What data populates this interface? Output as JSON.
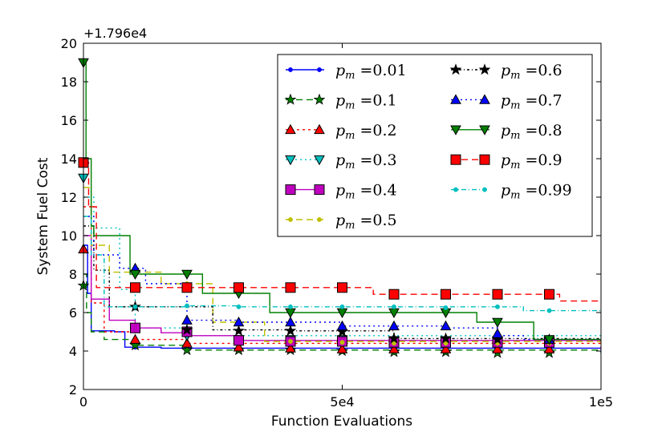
{
  "chart_data": {
    "type": "line",
    "title": "",
    "xlabel": "Function Evaluations",
    "ylabel": "System Fuel Cost",
    "y_offset_label": "+1.796e4",
    "xlim": [
      0,
      100000
    ],
    "ylim": [
      2,
      20
    ],
    "x_ticks": [
      {
        "value": 0,
        "label": "0"
      },
      {
        "value": 50000,
        "label": "5e4"
      },
      {
        "value": 100000,
        "label": "1e5"
      }
    ],
    "y_ticks": [
      {
        "value": 2,
        "label": "2"
      },
      {
        "value": 4,
        "label": "4"
      },
      {
        "value": 6,
        "label": "6"
      },
      {
        "value": 8,
        "label": "8"
      },
      {
        "value": 10,
        "label": "10"
      },
      {
        "value": 12,
        "label": "12"
      },
      {
        "value": 14,
        "label": "14"
      },
      {
        "value": 16,
        "label": "16"
      },
      {
        "value": 18,
        "label": "18"
      },
      {
        "value": 20,
        "label": "20"
      }
    ],
    "legend_position": "top-right",
    "series": [
      {
        "name": "0.01",
        "color": "#0000ff",
        "dash": "solid",
        "marker": "dot",
        "x": [
          0,
          800,
          1500,
          6000,
          8000,
          15000,
          100000
        ],
        "y": [
          9.5,
          7.0,
          5.05,
          5.0,
          4.2,
          4.15,
          3.95
        ],
        "markers": [
          [
            10000,
            4.2
          ],
          [
            20000,
            4.15
          ],
          [
            30000,
            4.1
          ],
          [
            40000,
            4.05
          ],
          [
            50000,
            4.0
          ],
          [
            60000,
            4.0
          ],
          [
            70000,
            4.0
          ],
          [
            80000,
            3.97
          ],
          [
            90000,
            3.95
          ]
        ]
      },
      {
        "name": "0.1",
        "color": "#008000",
        "dash": "8,5",
        "marker": "star",
        "x": [
          0,
          600,
          1500,
          4000,
          10000,
          20000,
          100000
        ],
        "y": [
          8.0,
          6.0,
          5.0,
          4.6,
          4.3,
          4.05,
          3.85
        ],
        "markers": [
          [
            0,
            7.4
          ],
          [
            10000,
            4.3
          ],
          [
            20000,
            4.05
          ],
          [
            30000,
            4.05
          ],
          [
            40000,
            4.05
          ],
          [
            50000,
            4.0
          ],
          [
            60000,
            3.95
          ],
          [
            70000,
            3.95
          ],
          [
            80000,
            3.9
          ],
          [
            90000,
            3.9
          ]
        ]
      },
      {
        "name": "0.2",
        "color": "#ff0000",
        "dash": "3,4",
        "marker": "triangle-up",
        "x": [
          0,
          1500,
          4000,
          10000,
          20000,
          100000
        ],
        "y": [
          11.5,
          6.5,
          5.0,
          4.6,
          4.4,
          4.1
        ],
        "markers": [
          [
            0,
            9.3
          ],
          [
            10000,
            4.6
          ],
          [
            20000,
            4.4
          ],
          [
            30000,
            4.2
          ],
          [
            40000,
            4.15
          ],
          [
            50000,
            4.1
          ],
          [
            60000,
            4.1
          ],
          [
            70000,
            4.1
          ],
          [
            80000,
            4.1
          ],
          [
            90000,
            4.1
          ]
        ]
      },
      {
        "name": "0.3",
        "color": "#00bfbf",
        "dash": "2,4",
        "marker": "triangle-down",
        "x": [
          0,
          2000,
          7000,
          10000,
          20000,
          100000
        ],
        "y": [
          12.0,
          10.4,
          7.2,
          5.2,
          4.8,
          4.55
        ],
        "markers": [
          [
            0,
            13.0
          ],
          [
            10000,
            5.2
          ],
          [
            20000,
            4.8
          ],
          [
            30000,
            4.6
          ],
          [
            40000,
            4.6
          ],
          [
            50000,
            4.6
          ],
          [
            60000,
            4.55
          ],
          [
            70000,
            4.55
          ],
          [
            80000,
            4.55
          ],
          [
            90000,
            4.55
          ]
        ]
      },
      {
        "name": "0.4",
        "color": "#bf00bf",
        "dash": "solid",
        "marker": "square",
        "x": [
          0,
          1500,
          5000,
          10000,
          15000,
          20000,
          30000,
          100000
        ],
        "y": [
          10.0,
          6.7,
          5.6,
          5.2,
          4.95,
          4.8,
          4.55,
          4.45
        ],
        "markers": [
          [
            10000,
            5.2
          ],
          [
            20000,
            5.0
          ],
          [
            30000,
            4.55
          ],
          [
            40000,
            4.5
          ],
          [
            50000,
            4.5
          ],
          [
            60000,
            4.45
          ],
          [
            70000,
            4.45
          ],
          [
            80000,
            4.45
          ],
          [
            90000,
            4.45
          ]
        ]
      },
      {
        "name": "0.5",
        "color": "#bfbf00",
        "dash": "8,5",
        "marker": "dot",
        "x": [
          0,
          1500,
          5000,
          15000,
          25000,
          35000,
          100000
        ],
        "y": [
          12.5,
          9.5,
          8.1,
          7.5,
          5.5,
          4.5,
          4.4
        ],
        "markers": [
          [
            10000,
            8.1
          ],
          [
            20000,
            7.5
          ],
          [
            30000,
            5.5
          ],
          [
            40000,
            4.5
          ],
          [
            50000,
            4.45
          ],
          [
            60000,
            4.4
          ],
          [
            70000,
            4.4
          ],
          [
            80000,
            4.4
          ],
          [
            90000,
            4.4
          ]
        ]
      },
      {
        "name": "0.6",
        "color": "#000000",
        "dash": "3,3,1,3",
        "marker": "star",
        "x": [
          0,
          2000,
          5000,
          15000,
          25000,
          40000,
          60000,
          100000
        ],
        "y": [
          10.5,
          8.2,
          6.3,
          6.3,
          5.1,
          5.05,
          4.65,
          4.6
        ],
        "markers": [
          [
            10000,
            6.3
          ],
          [
            20000,
            5.1
          ],
          [
            30000,
            5.05
          ],
          [
            40000,
            5.05
          ],
          [
            50000,
            5.0
          ],
          [
            60000,
            4.65
          ],
          [
            70000,
            4.65
          ],
          [
            80000,
            4.6
          ],
          [
            90000,
            4.6
          ]
        ]
      },
      {
        "name": "0.7",
        "color": "#0000ff",
        "dash": "2,4",
        "marker": "triangle-up",
        "x": [
          0,
          2000,
          7000,
          12000,
          20000,
          30000,
          50000,
          70000,
          80000,
          85000,
          100000
        ],
        "y": [
          11.0,
          9.0,
          8.3,
          7.5,
          5.6,
          5.5,
          5.3,
          5.2,
          4.8,
          4.6,
          4.55
        ],
        "markers": [
          [
            10000,
            8.3
          ],
          [
            20000,
            5.6
          ],
          [
            30000,
            5.5
          ],
          [
            40000,
            5.5
          ],
          [
            50000,
            5.3
          ],
          [
            60000,
            5.3
          ],
          [
            70000,
            5.3
          ],
          [
            80000,
            4.9
          ],
          [
            90000,
            4.6
          ]
        ]
      },
      {
        "name": "0.8",
        "color": "#008000",
        "dash": "solid",
        "marker": "triangle-down",
        "x": [
          0,
          500,
          1500,
          2000,
          8000,
          9000,
          22000,
          23000,
          35000,
          36000,
          75000,
          76000,
          85000,
          87000,
          100000
        ],
        "y": [
          19.0,
          14.0,
          10.5,
          10.0,
          10.0,
          8.0,
          8.0,
          7.0,
          7.0,
          6.0,
          6.0,
          5.5,
          5.5,
          4.6,
          4.6
        ],
        "markers": [
          [
            0,
            19.0
          ],
          [
            10000,
            8.0
          ],
          [
            20000,
            8.0
          ],
          [
            30000,
            7.0
          ],
          [
            40000,
            6.0
          ],
          [
            50000,
            6.0
          ],
          [
            60000,
            6.0
          ],
          [
            70000,
            6.0
          ],
          [
            80000,
            5.5
          ],
          [
            90000,
            4.6
          ]
        ]
      },
      {
        "name": "0.9",
        "color": "#ff0000",
        "dash": "8,5",
        "marker": "square",
        "x": [
          0,
          1000,
          2500,
          55000,
          56000,
          90000,
          92000,
          100000
        ],
        "y": [
          13.8,
          11.5,
          7.3,
          7.3,
          6.95,
          6.95,
          6.6,
          6.6
        ],
        "markers": [
          [
            0,
            13.8
          ],
          [
            10000,
            7.3
          ],
          [
            20000,
            7.3
          ],
          [
            30000,
            7.3
          ],
          [
            40000,
            7.3
          ],
          [
            50000,
            7.3
          ],
          [
            60000,
            6.95
          ],
          [
            70000,
            6.95
          ],
          [
            80000,
            6.95
          ],
          [
            90000,
            6.95
          ]
        ]
      },
      {
        "name": "0.99",
        "color": "#00bfbf",
        "dash": "6,3,1,3",
        "marker": "dot",
        "x": [
          0,
          1500,
          4000,
          20000,
          30000,
          85000,
          100000
        ],
        "y": [
          11.0,
          9.0,
          6.3,
          6.35,
          6.3,
          6.1,
          6.05
        ],
        "markers": [
          [
            10000,
            6.3
          ],
          [
            20000,
            6.35
          ],
          [
            30000,
            6.3
          ],
          [
            40000,
            6.3
          ],
          [
            50000,
            6.3
          ],
          [
            60000,
            6.3
          ],
          [
            70000,
            6.25
          ],
          [
            80000,
            6.3
          ],
          [
            90000,
            6.1
          ]
        ]
      }
    ]
  },
  "legend": {
    "symbol": "p",
    "subscript": "m",
    "equals": "="
  }
}
